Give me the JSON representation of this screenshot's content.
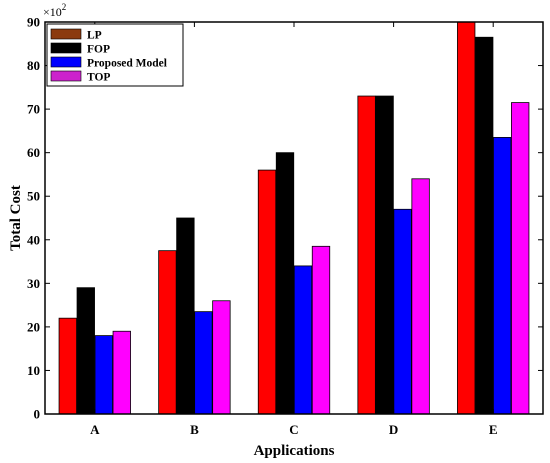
{
  "chart_data": {
    "type": "bar",
    "title": "",
    "xlabel": "Applications",
    "ylabel": "Total Cost",
    "y_multiplier": "×10",
    "y_multiplier_exp": "2",
    "categories": [
      "A",
      "B",
      "C",
      "D",
      "E"
    ],
    "ylim": [
      0,
      90
    ],
    "yticks": [
      0,
      10,
      20,
      30,
      40,
      50,
      60,
      70,
      80,
      90
    ],
    "grid": false,
    "legend_position": "top-left",
    "series": [
      {
        "name": "LP",
        "values": [
          22,
          37.5,
          56,
          73,
          90
        ],
        "color": "#ff0000",
        "legend_color": "#8b3a0e"
      },
      {
        "name": "FOP",
        "values": [
          29,
          45,
          60,
          73,
          86.5
        ],
        "color": "#000000",
        "legend_color": "#000000"
      },
      {
        "name": "Proposed Model",
        "values": [
          18,
          23.5,
          34,
          47,
          63.5
        ],
        "color": "#0000ff",
        "legend_color": "#0000ff"
      },
      {
        "name": "TOP",
        "values": [
          19,
          26,
          38.5,
          54,
          71.5
        ],
        "color": "#ff00ff",
        "legend_color": "#cc22cc"
      }
    ]
  }
}
